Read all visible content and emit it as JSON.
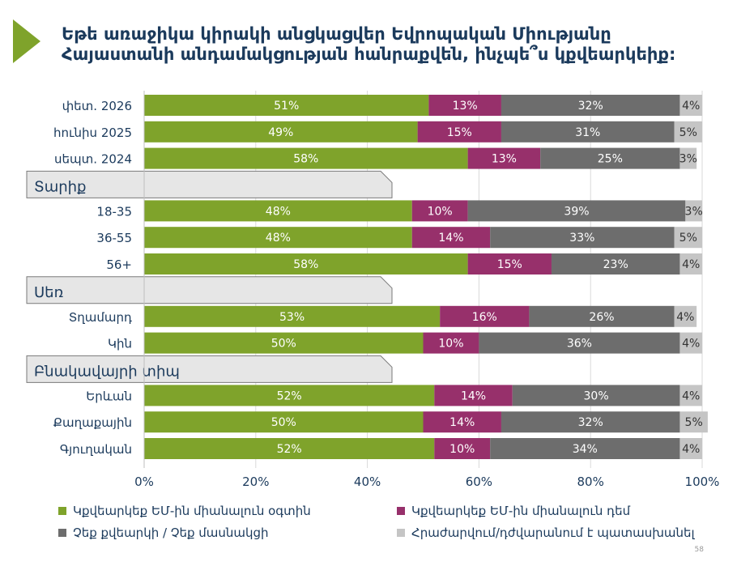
{
  "title": {
    "line1": "Եթե առաջիկա կիրակի անցկացվեր Եվրոպական Միությանը",
    "line2": "Հայաստանի անդամակցության հանրաքվեն, ինչպե՞ս կքվեարկեիք:"
  },
  "colors": {
    "for": "#7fa32b",
    "against": "#97306b",
    "no_vote": "#6d6d6d",
    "refuse": "#c5c5c5",
    "title": "#1b3a5c",
    "group_header_bg": "#e6e6e6"
  },
  "page_number": "58",
  "chart_data": {
    "type": "bar",
    "orientation": "horizontal",
    "stacked": true,
    "title": "Եթե առաջիկա կիրակի անցկացվեր Եվրոպական Միությանը Հայաստանի անդամակցության հանրաքվեն, ինչպե՞ս կքվեարկեիք:",
    "xlim": [
      0,
      100
    ],
    "xticks": [
      "0%",
      "20%",
      "40%",
      "60%",
      "80%",
      "100%"
    ],
    "legend_position": "bottom",
    "series": [
      {
        "key": "for",
        "name": "Կքվեարկեք ԵՄ-ին միանալուն օգտին"
      },
      {
        "key": "against",
        "name": "Կքվեարկեք ԵՄ-ին միանալուն դեմ"
      },
      {
        "key": "no_vote",
        "name": "Չեք քվեարկի / Չեք մասնակցի"
      },
      {
        "key": "refuse",
        "name": "Հրաժարվում/դժվարանում է պատասխանել"
      }
    ],
    "groups": [
      {
        "header": "",
        "rows": [
          {
            "label": "փետ. 2026",
            "values": [
              51,
              13,
              32,
              4
            ]
          },
          {
            "label": "հունիս 2025",
            "values": [
              49,
              15,
              31,
              5
            ]
          },
          {
            "label": "սեպտ. 2024",
            "values": [
              58,
              13,
              25,
              3
            ]
          }
        ]
      },
      {
        "header": "Տարիք",
        "rows": [
          {
            "label": "18-35",
            "values": [
              48,
              10,
              39,
              3
            ]
          },
          {
            "label": "36-55",
            "values": [
              48,
              14,
              33,
              5
            ]
          },
          {
            "label": "56+",
            "values": [
              58,
              15,
              23,
              4
            ]
          }
        ]
      },
      {
        "header": "Սեռ",
        "rows": [
          {
            "label": "Տղամարդ",
            "values": [
              53,
              16,
              26,
              4
            ]
          },
          {
            "label": "Կին",
            "values": [
              50,
              10,
              36,
              4
            ]
          }
        ]
      },
      {
        "header": "Բնակավայրի տիպ",
        "rows": [
          {
            "label": "Երևան",
            "values": [
              52,
              14,
              30,
              4
            ]
          },
          {
            "label": "Քաղաքային",
            "values": [
              50,
              14,
              32,
              5
            ]
          },
          {
            "label": "Գյուղական",
            "values": [
              52,
              10,
              34,
              4
            ]
          }
        ]
      }
    ]
  }
}
